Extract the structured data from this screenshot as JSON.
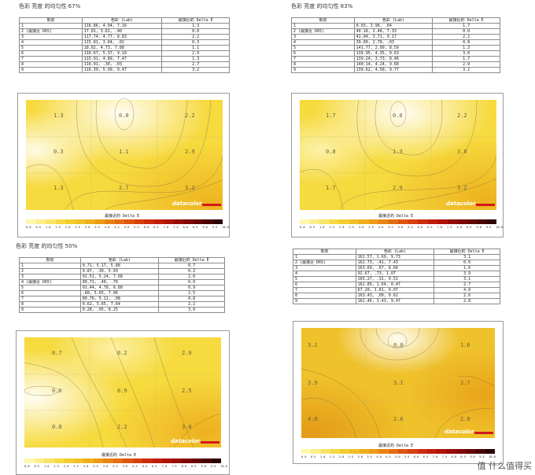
{
  "sections": [
    {
      "title": "色彩 亮度 的均匀性 67%",
      "headers": [
        "象限",
        "色彩 (Lab)",
        "最接近的 Delta E"
      ],
      "rows": [
        [
          "1",
          "116.86,  4.94,  7.16",
          "1.3"
        ],
        [
          "2 (最接近 D65)",
          "17.01,  3.61,   .90",
          "0.0"
        ],
        [
          "3",
          "117.74,  4.77,  8.83",
          "2.2"
        ],
        [
          "4",
          "115.81,  3.84,   .02",
          "0.3"
        ],
        [
          "5",
          "18.02,  4.73,  7.88",
          "1.1"
        ],
        [
          "6",
          "116.67,  5.37,  9.19",
          "2.9"
        ],
        [
          "7",
          "115.91,  4.89,  7.47",
          "1.3"
        ],
        [
          "8",
          "116.91,   .30,   .03",
          "2.7"
        ],
        [
          "9",
          "116.39,  5.99,  9.47",
          "3.2"
        ]
      ],
      "grid": [
        "1.3",
        "0.0",
        "2.2",
        "0.3",
        "1.1",
        "2.9",
        "1.3",
        "2.7",
        "3.2"
      ],
      "legend_title": "最接近的 Delta E"
    },
    {
      "title": "色彩 亮度 的均匀性 83%",
      "headers": [
        "象限",
        "色彩 (Lab)",
        "最接近的 Delta E"
      ],
      "rows": [
        [
          "1",
          "0.03,  3.96,   .04",
          "1.7"
        ],
        [
          "2 (最接近 D65)",
          "40.18,  2.48,  7.33",
          "0.0"
        ],
        [
          "3",
          "41.04,  3.71,  9.17",
          "2.2"
        ],
        [
          "4",
          "39.09,  2.78,   .03",
          "0.8"
        ],
        [
          "5",
          "141.77,  2.99,  8.59",
          "1.3"
        ],
        [
          "6",
          "139.95,  4.35,  9.63",
          "3.0"
        ],
        [
          "7",
          "139.24,  3.73,  8.46",
          "1.7"
        ],
        [
          "8",
          "140.14,  4.24,  9.68",
          "2.9"
        ],
        [
          "9",
          "139.62,  4.58,  9.77",
          "3.2"
        ]
      ],
      "grid": [
        "1.7",
        "0.0",
        "2.2",
        "0.8",
        "1.3",
        "3.0",
        "1.7",
        "2.9",
        "3.2"
      ],
      "legend_title": "最接近的 Delta E"
    },
    {
      "title": "色彩 亮度 的均匀性 50%",
      "headers": [
        "象限",
        "色彩 (Lab)",
        "最接近的 Delta E"
      ],
      "rows": [
        [
          "1",
          "0.71,  5.17,  5.88",
          "0.7"
        ],
        [
          "2",
          "9.87,   .30,  5.93",
          "0.2"
        ],
        [
          "3",
          "91.51,  5.24,  7.68",
          "2.0"
        ],
        [
          "4 (最接近 D65)",
          "89.71,   .40,   .70",
          "0.0"
        ],
        [
          "5",
          "91.44,  4.78,  6.80",
          "0.9"
        ],
        [
          "6",
          ".80,  5.65,  7.96",
          "2.5"
        ],
        [
          "7",
          "89.76,  5.11,   .08",
          "0.8"
        ],
        [
          "8",
          "0.62,  5.65,  7.64",
          "2.2"
        ],
        [
          "9",
          "0.28,   .05,  8.25",
          "3.0"
        ]
      ],
      "grid": [
        "0.7",
        "0.2",
        "2.0",
        "0.0",
        "0.9",
        "2.5",
        "0.8",
        "2.2",
        "3.0"
      ],
      "legend_title": "最接近的 Delta E"
    },
    {
      "title": "",
      "headers": [
        "象限",
        "色彩 (Lab)",
        "最接近的 Delta E"
      ],
      "rows": [
        [
          "1",
          "162.57,  1.69,  9.73",
          "3.1"
        ],
        [
          "2 (最接近 D65)",
          "162.73,   .41,  7.43",
          "0.0"
        ],
        [
          "3",
          "163.69,   .67,  8.68",
          "1.6"
        ],
        [
          "4",
          "92.67,   .73,  1.07",
          "3.9"
        ],
        [
          "5",
          "165.27,   .31,  0.51",
          "3.1"
        ],
        [
          "6",
          "162.85,  1.64,  0.47",
          "2.7"
        ],
        [
          "7",
          "67.20,  1.81,  9.07",
          "4.0"
        ],
        [
          "8",
          "163.43,   .09,  9.62",
          "2.6"
        ],
        [
          "9",
          "162.46,  1.43,  9.47",
          "2.8"
        ]
      ],
      "grid": [
        "3.1",
        "0.0",
        "1.6",
        "3.9",
        "3.1",
        "2.7",
        "4.0",
        "2.6",
        "2.8"
      ],
      "legend_title": "最接近的 Delta E"
    }
  ],
  "scale_labels": [
    "0.0",
    "0.5",
    "1.0",
    "1.5",
    "2.0",
    "2.5",
    "3.0",
    "3.5",
    "4.0",
    "4.5",
    "5.0",
    "5.5",
    "6.0",
    "6.5",
    "7.0",
    "7.5",
    "8.0",
    "8.5",
    "9.0",
    "9.5",
    "10.0"
  ],
  "brand": "datacolor",
  "watermark": "值 什么值得买",
  "colors": {
    "panel_base": "#f5d638",
    "hot": "#e8a21a",
    "cool": "#fffbea",
    "brand_red": "#d4171b"
  }
}
